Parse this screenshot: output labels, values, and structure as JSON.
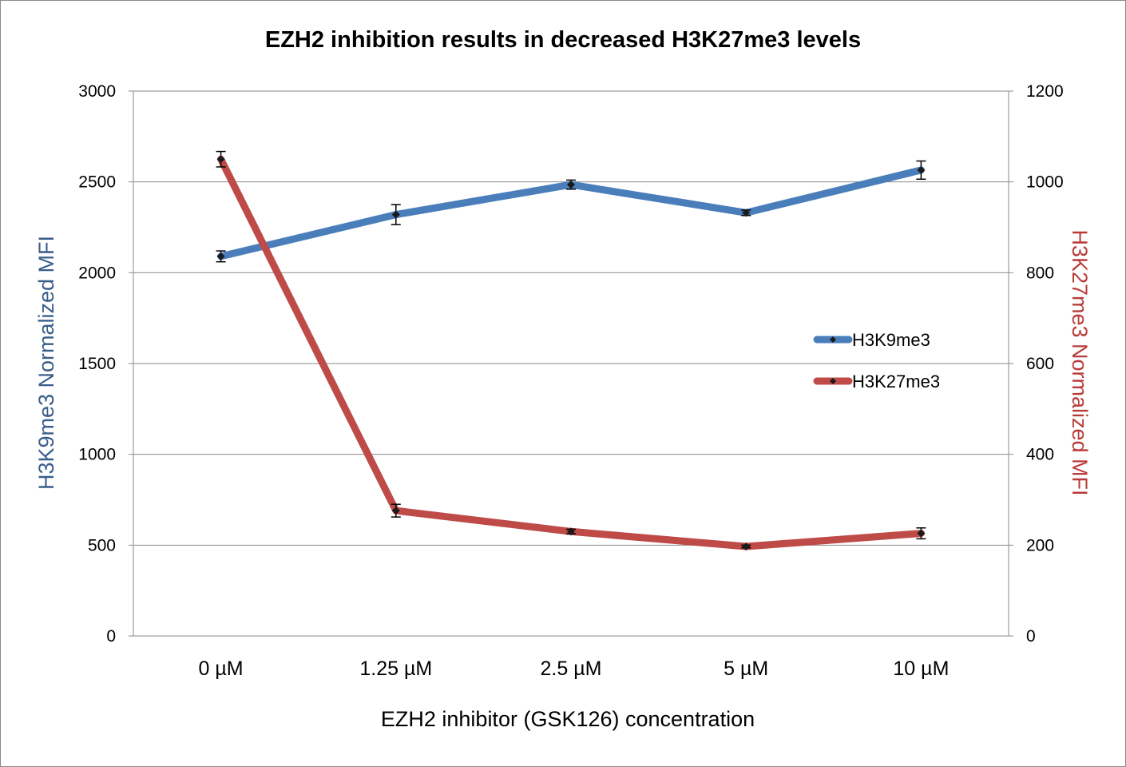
{
  "chart_data": {
    "type": "line",
    "title": "EZH2 inhibition results in decreased H3K27me3 levels",
    "xlabel": "EZH2 inhibitor (GSK126) concentration",
    "ylabel_left": "H3K9me3 Normalized  MFI",
    "ylabel_right": "H3K27me3 Normalized MFI",
    "categories": [
      "0 µM",
      "1.25 µM",
      "2.5 µM",
      "5 µM",
      "10 µM"
    ],
    "y_left": {
      "min": 0,
      "max": 3000,
      "ticks": [
        0,
        500,
        1000,
        1500,
        2000,
        2500,
        3000
      ]
    },
    "y_right": {
      "min": 0,
      "max": 1200,
      "ticks": [
        0,
        200,
        400,
        600,
        800,
        1000,
        1200
      ]
    },
    "grid": true,
    "legend_position": "right",
    "series": [
      {
        "name": "H3K9me3",
        "axis": "left",
        "color": "#4a7ebb",
        "values": [
          2090,
          2320,
          2485,
          2330,
          2565
        ],
        "errors": [
          30,
          55,
          25,
          15,
          50
        ]
      },
      {
        "name": "H3K27me3",
        "axis": "right",
        "color": "#be4b48",
        "values": [
          1050,
          276,
          230,
          197,
          226
        ],
        "errors": [
          17,
          14,
          5,
          3,
          12
        ]
      }
    ],
    "colors": {
      "left_axis_label": "#385d8a",
      "right_axis_label": "#b93b38",
      "grid": "#8a8a8a",
      "marker": "#1a1a1a"
    }
  }
}
